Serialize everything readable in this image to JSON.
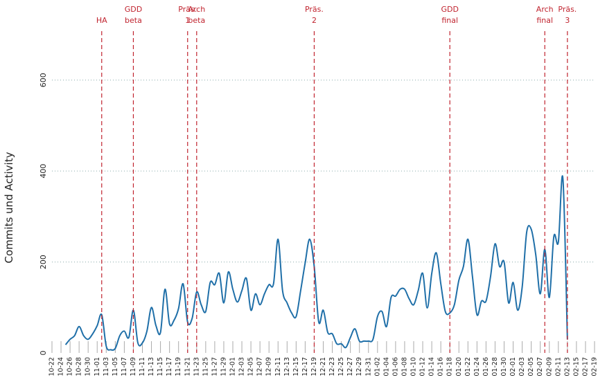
{
  "chart_data": {
    "type": "line",
    "y_label": "Commits und Activity",
    "categories": [
      "10-22",
      null,
      "10-24",
      null,
      "10-26",
      null,
      "10-28",
      null,
      "10-30",
      null,
      "11-01",
      null,
      "11-03",
      null,
      "11-05",
      null,
      "11-07",
      null,
      "11-09",
      null,
      "11-11",
      null,
      "11-13",
      null,
      "11-15",
      null,
      "11-17",
      null,
      "11-19",
      null,
      "11-21",
      null,
      "11-23",
      null,
      "11-25",
      null,
      "11-27",
      null,
      "11-29",
      null,
      "12-01",
      null,
      "12-03",
      null,
      "12-05",
      null,
      "12-07",
      null,
      "12-09",
      null,
      "12-11",
      null,
      "12-13",
      null,
      "12-15",
      null,
      "12-17",
      null,
      "12-19",
      null,
      "12-21",
      null,
      "12-23",
      null,
      "12-25",
      null,
      "12-27",
      null,
      "12-29",
      null,
      "12-31",
      null,
      "01-02",
      null,
      "01-04",
      null,
      "01-06",
      null,
      "01-08",
      null,
      "01-10",
      null,
      "01-12",
      null,
      "01-14",
      null,
      "01-16",
      null,
      "01-18",
      null,
      "01-20",
      null,
      "01-22",
      null,
      "01-24",
      null,
      "01-26",
      null,
      "01-28",
      null,
      "01-30",
      null,
      "02-01",
      null,
      "02-03",
      null,
      "02-05",
      null,
      "02-07",
      null,
      "02-09",
      null,
      "02-11",
      null,
      "02-13",
      null,
      "02-15",
      null,
      "02-17",
      null,
      "02-19"
    ],
    "series": [
      {
        "color": "#1f6fa8",
        "values": [
          null,
          null,
          null,
          18,
          30,
          38,
          58,
          38,
          30,
          42,
          60,
          84,
          15,
          7,
          10,
          38,
          48,
          34,
          94,
          22,
          22,
          48,
          100,
          60,
          45,
          140,
          64,
          72,
          98,
          152,
          68,
          76,
          134,
          106,
          91,
          155,
          150,
          175,
          110,
          178,
          140,
          112,
          137,
          164,
          94,
          130,
          106,
          130,
          150,
          152,
          250,
          137,
          110,
          88,
          80,
          137,
          198,
          250,
          190,
          68,
          94,
          45,
          42,
          20,
          20,
          12,
          34,
          53,
          26,
          26,
          26,
          30,
          80,
          91,
          58,
          122,
          125,
          140,
          140,
          119,
          106,
          137,
          175,
          99,
          175,
          220,
          152,
          91,
          88,
          106,
          160,
          190,
          250,
          168,
          84,
          114,
          114,
          168,
          240,
          190,
          200,
          110,
          155,
          94,
          145,
          266,
          272,
          216,
          130,
          228,
          122,
          256,
          244,
          384,
          30,
          null,
          null,
          null,
          null,
          null,
          null
        ]
      }
    ],
    "events": [
      {
        "x": "11-02",
        "label": [
          "HA"
        ]
      },
      {
        "x": "11-09",
        "label": [
          "GDD",
          "beta"
        ]
      },
      {
        "x": "11-21",
        "label": [
          "Präs.",
          "1"
        ]
      },
      {
        "x": "11-23",
        "label": [
          "Arch",
          "beta"
        ]
      },
      {
        "x": "12-19",
        "label": [
          "Präs.",
          "2"
        ]
      },
      {
        "x": "01-18",
        "label": [
          "GDD",
          "final"
        ]
      },
      {
        "x": "02-08",
        "label": [
          "Arch",
          "final"
        ]
      },
      {
        "x": "02-13",
        "label": [
          "Präs.",
          "3"
        ]
      }
    ],
    "event_color": "#c0232e",
    "ylim": [
      0,
      700
    ],
    "yticks": [
      0,
      200,
      400,
      600
    ],
    "grid": true
  }
}
